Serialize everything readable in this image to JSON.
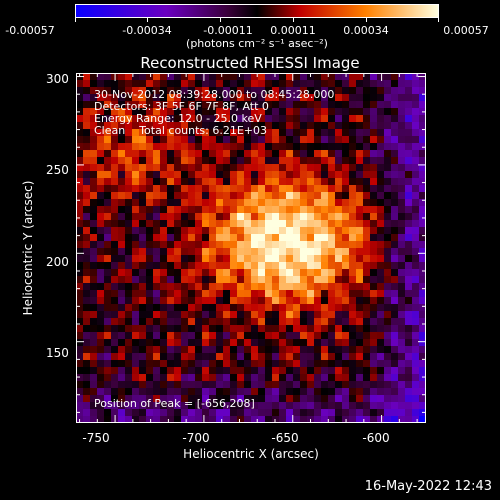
{
  "colorbar": {
    "labels": [
      "-0.00057",
      "-0.00034",
      "-0.00011",
      "0.00011",
      "0.00034",
      "0.00057"
    ],
    "units": "(photons cm⁻² s⁻¹ asec⁻²)"
  },
  "title": "Reconstructed RHESSI Image",
  "info": {
    "time_range": "30-Nov-2012 08:39:28.000 to 08:45:28.000",
    "detectors": "Detectors: 3F 5F 6F 7F 8F, Att 0",
    "energy_range": "Energy Range: 12.0 - 25.0 keV",
    "method": "Clean    Total counts: 6.21E+03",
    "peak": "Position of Peak = [-656,208]"
  },
  "axes": {
    "xlabel": "Heliocentric X (arcsec)",
    "ylabel": "Heliocentric Y (arcsec)",
    "x_ticks": [
      "-750",
      "-700",
      "-650",
      "-600"
    ],
    "y_ticks": [
      "300",
      "250",
      "200",
      "150"
    ],
    "x_range": [
      -772,
      -575
    ],
    "y_range": [
      104,
      302
    ]
  },
  "peak_position": [
    -656,
    208
  ],
  "timestamp": "16-May-2022 12:43"
}
